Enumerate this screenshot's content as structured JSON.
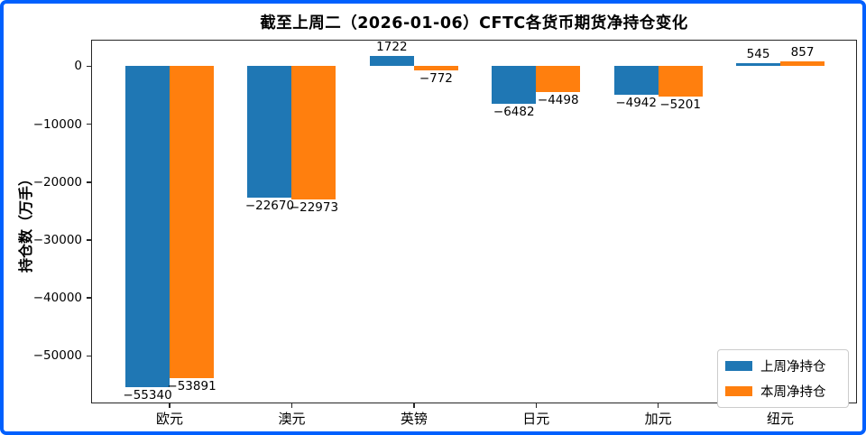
{
  "window": {
    "frame_border_color": "#0060fe",
    "background_color": "#ffffff"
  },
  "chart_data": {
    "type": "bar",
    "title": "截至上周二（2026-01-06）CFTC各货币期货净持仓变化",
    "xlabel": "",
    "ylabel": "持仓数（万手）",
    "categories": [
      "欧元",
      "澳元",
      "英镑",
      "日元",
      "加元",
      "纽元"
    ],
    "series": [
      {
        "name": "上周净持仓",
        "color": "#1f77b4",
        "values": [
          -55340,
          -22670,
          1722,
          -6482,
          -4942,
          545
        ]
      },
      {
        "name": "本周净持仓",
        "color": "#ff7f0e",
        "values": [
          -53891,
          -22973,
          -772,
          -4498,
          -5201,
          857
        ]
      }
    ],
    "value_labels": [
      [
        "−55340",
        "−22670",
        "1722",
        "−6482",
        "−4942",
        "545"
      ],
      [
        "−53891",
        "−22973",
        "−772",
        "−4498",
        "−5201",
        "857"
      ]
    ],
    "ylim": [
      -58193,
      4575
    ],
    "yticks": [
      0,
      -10000,
      -20000,
      -30000,
      -40000,
      -50000
    ],
    "ytick_labels": [
      "0",
      "−10000",
      "−20000",
      "−30000",
      "−40000",
      "−50000"
    ],
    "grid": false,
    "legend_position": "lower right",
    "bar_edge_colors": {
      "spine": "#262626",
      "text": "#000000"
    }
  }
}
